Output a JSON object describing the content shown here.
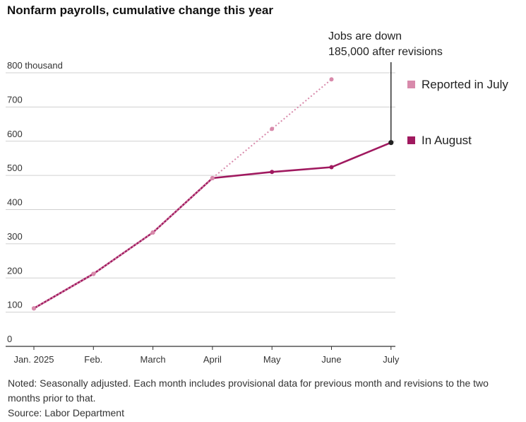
{
  "title": "Nonfarm payrolls, cumulative change this year",
  "annotation": [
    "Jobs are down",
    "185,000 after revisions"
  ],
  "note": "Noted: Seasonally adjusted. Each month includes provisional data for previous month and revisions to the two months prior to that.",
  "source": "Source: Labor Department",
  "colors": {
    "reported": "#d88aab",
    "august": "#a0195f",
    "grid": "#d0d0d0",
    "axis": "#333333"
  },
  "chart_data": {
    "type": "line",
    "categories": [
      "Jan. 2025",
      "Feb.",
      "March",
      "April",
      "May",
      "June",
      "July"
    ],
    "yticks": [
      "0",
      "100",
      "200",
      "300",
      "400",
      "500",
      "600",
      "700",
      "800 thousand"
    ],
    "ylim": [
      0,
      800
    ],
    "grid": true,
    "series": [
      {
        "name": "Reported in July",
        "style": "dotted",
        "values": [
          111,
          212,
          333,
          492,
          636,
          781,
          null
        ]
      },
      {
        "name": "In August",
        "style": "solid",
        "values": [
          111,
          212,
          333,
          492,
          510,
          524,
          596
        ]
      }
    ]
  }
}
